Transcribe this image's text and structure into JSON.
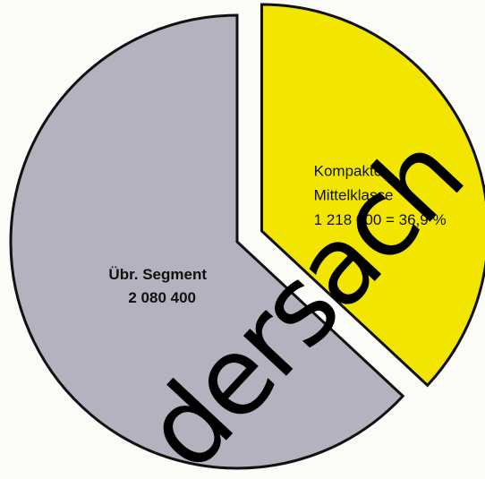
{
  "chart_data": {
    "type": "pie",
    "categories": [
      "Kompakte Mittelklasse",
      "Übr. Segment"
    ],
    "values": [
      1218000,
      2080400
    ],
    "value_labels": [
      "1 218 000 = 36,9 %",
      "2 080 400"
    ],
    "colors": [
      "#f2e600",
      "#b4b2bf"
    ],
    "exploded": [
      true,
      false
    ],
    "watermark": "dersach"
  }
}
